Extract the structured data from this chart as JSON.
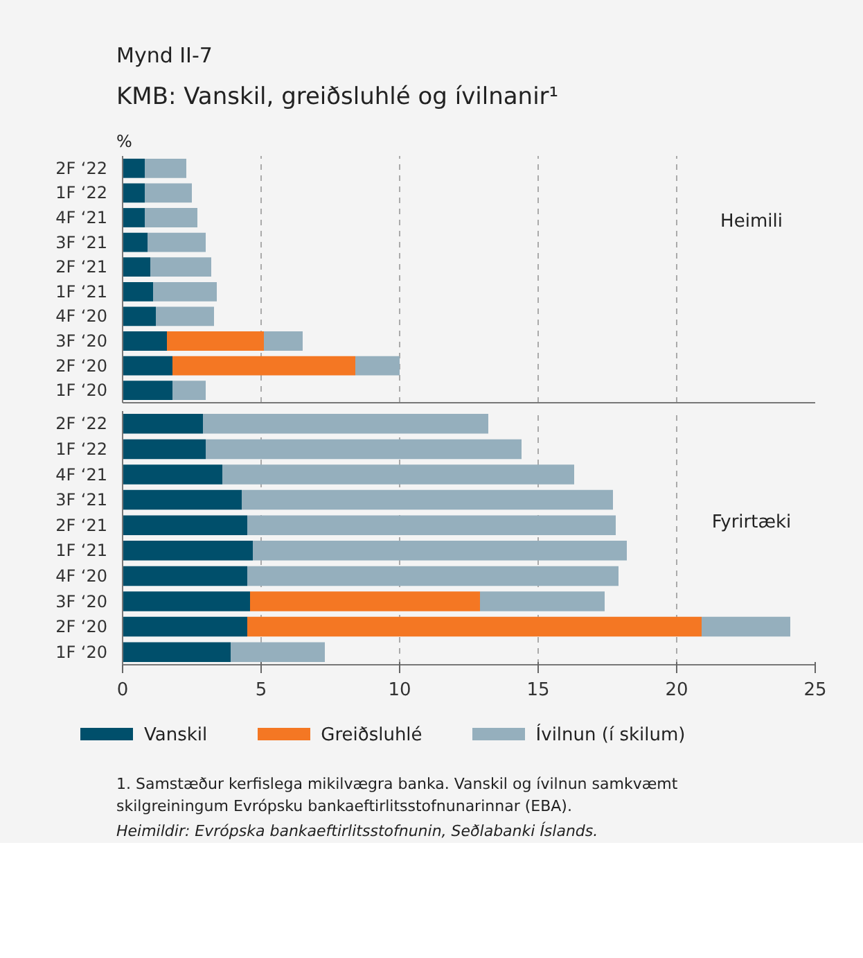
{
  "chart_data": [
    {
      "type": "bar",
      "orientation": "horizontal",
      "stacked": true,
      "title": "Mynd II-7",
      "subtitle": "KMB: Vanskil, greiðsluhlé og ívilnanir¹",
      "xlabel": "%",
      "categories": [
        "2F ‘22",
        "1F ‘22",
        "4F ‘21",
        "3F ‘21",
        "2F ‘21",
        "1F ‘21",
        "4F ‘20",
        "3F ‘20",
        "2F ‘20",
        "1F ‘20"
      ],
      "series": [
        {
          "color": "#004f6b",
          "values": [
            0.8,
            0.8,
            0.8,
            0.9,
            1.0,
            1.1,
            1.2,
            1.6,
            1.8,
            1.8
          ]
        },
        {
          "color": "#f47723",
          "values": [
            0,
            0,
            0,
            0,
            0,
            0,
            0,
            3.5,
            6.6,
            0
          ]
        },
        {
          "color": "#95afbd",
          "values": [
            1.5,
            1.7,
            1.9,
            2.1,
            2.2,
            2.3,
            2.1,
            1.4,
            1.6,
            1.2
          ]
        }
      ],
      "xlim": [
        0,
        25
      ],
      "xticks": [
        0,
        5,
        10,
        15,
        20,
        25
      ],
      "grid": "x",
      "tick_labels": "y",
      "annotations": [
        "Heimili"
      ]
    },
    {
      "type": "bar",
      "orientation": "horizontal",
      "stacked": true,
      "categories": [
        "2F ‘22",
        "1F ‘22",
        "4F ‘21",
        "3F ‘21",
        "2F ‘21",
        "1F ‘21",
        "4F ‘20",
        "3F ‘20",
        "2F ‘20",
        "1F ‘20"
      ],
      "series": [
        {
          "name": "Vanskil",
          "color": "#004f6b",
          "values": [
            2.9,
            3.0,
            3.6,
            4.3,
            4.5,
            4.7,
            4.5,
            4.6,
            4.5,
            3.9
          ]
        },
        {
          "name": "Greiðsluhlé",
          "color": "#f47723",
          "values": [
            0,
            0,
            0,
            0,
            0,
            0,
            0,
            8.3,
            16.4,
            0
          ]
        },
        {
          "name": "Ívilnun (í skilum)",
          "color": "#95afbd",
          "values": [
            10.3,
            11.4,
            12.7,
            13.4,
            13.3,
            13.5,
            13.4,
            4.5,
            3.2,
            3.4
          ]
        }
      ],
      "xlim": [
        0,
        25
      ],
      "xticks": [
        0,
        5,
        10,
        15,
        20,
        25
      ],
      "grid": "x",
      "legend": "bottom",
      "annotations": [
        "Fyrirtæki",
        "1. Samstæður kerfislega mikilvægra banka. Vanskil og ívilnun samkvæmt skilgreiningum Evrópsku bankaeftirlitsstofnunarinnar (EBA).",
        "Heimildir: Evrópska bankaeftirlitsstofnunin, Seðlabanki Íslands."
      ]
    }
  ]
}
